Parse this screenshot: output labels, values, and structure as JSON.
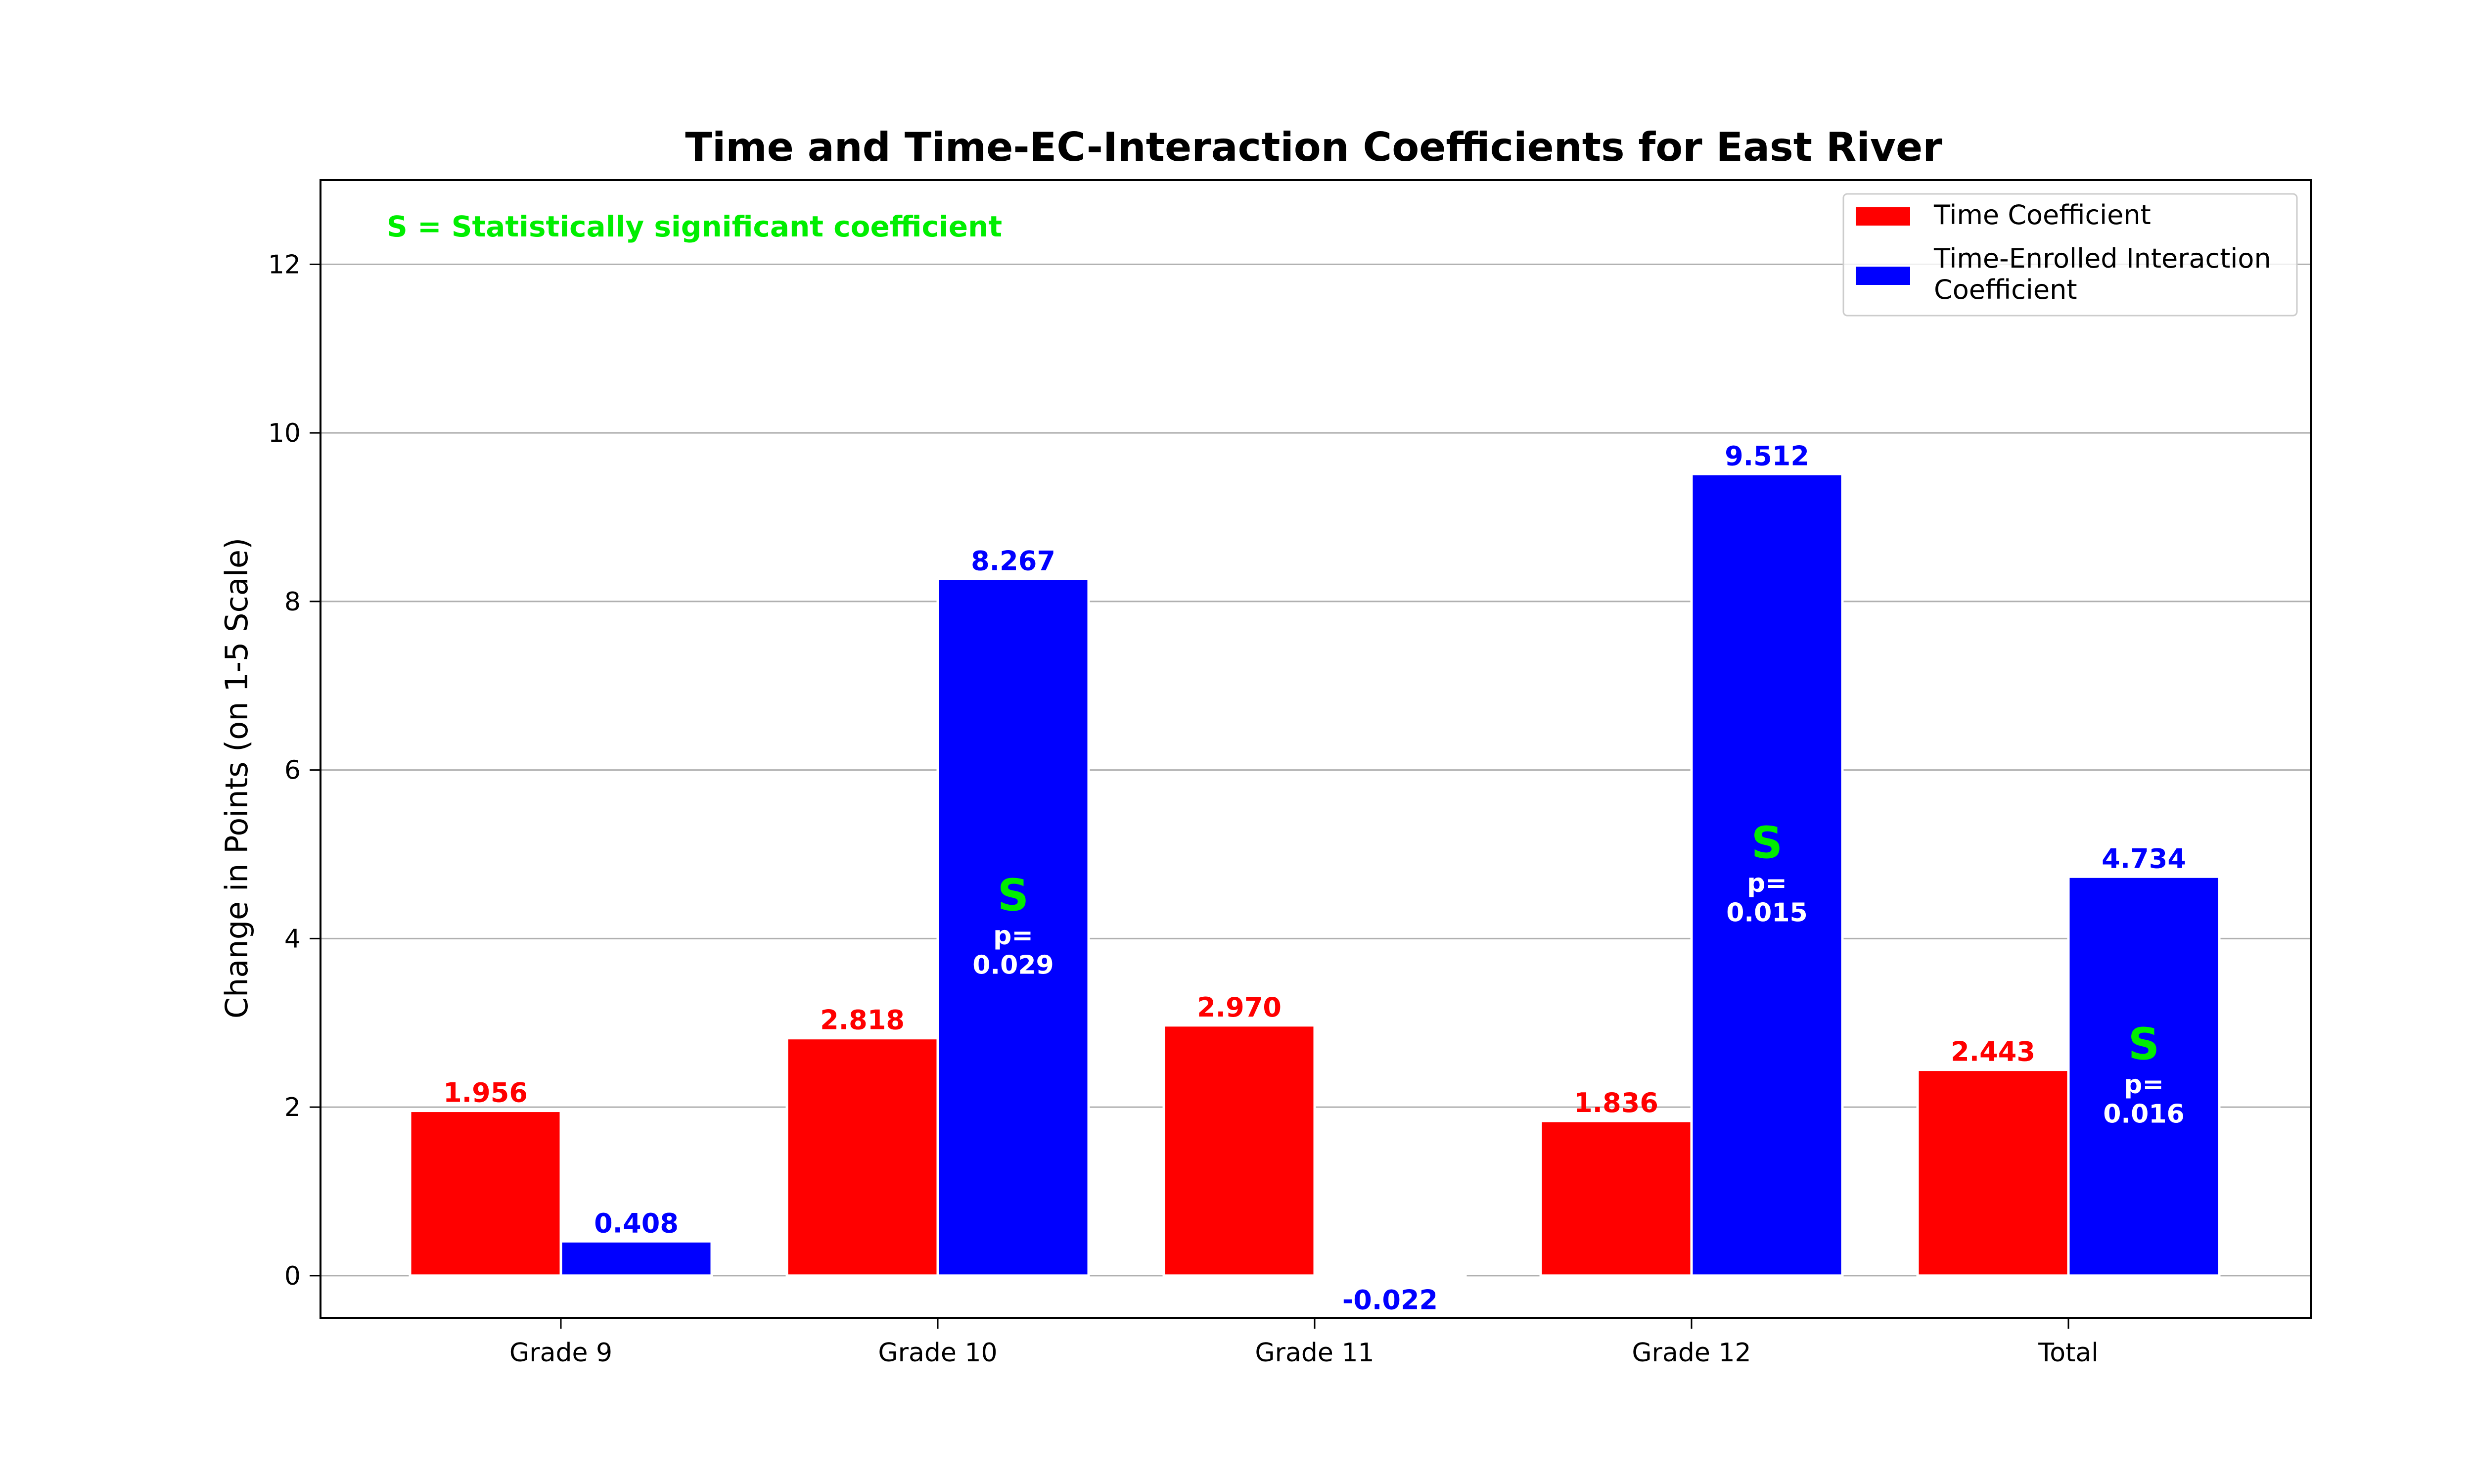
{
  "chart_data": {
    "type": "bar",
    "title": "Time and Time-EC-Interaction Coefficients for East River",
    "ylabel": "Change in Points (on 1-5 Scale)",
    "xlabel": "",
    "categories": [
      "Grade 9",
      "Grade 10",
      "Grade 11",
      "Grade 12",
      "Total"
    ],
    "series": [
      {
        "name": "Time Coefficient",
        "color": "#ff0000",
        "values": [
          1.956,
          2.818,
          2.97,
          1.836,
          2.443
        ],
        "labels": [
          "1.956",
          "2.818",
          "2.970",
          "1.836",
          "2.443"
        ]
      },
      {
        "name": "Time-Enrolled Interaction Coefficient",
        "legend_lines": [
          "Time-Enrolled Interaction",
          "Coefficient"
        ],
        "color": "#0000ff",
        "values": [
          0.408,
          8.267,
          -0.022,
          9.512,
          4.734
        ],
        "labels": [
          "0.408",
          "8.267",
          "-0.022",
          "9.512",
          "4.734"
        ]
      }
    ],
    "significance": [
      {
        "category_index": 1,
        "series_index": 1,
        "marker": "S",
        "p_label": "p=",
        "p_value": "0.029"
      },
      {
        "category_index": 3,
        "series_index": 1,
        "marker": "S",
        "p_label": "p=",
        "p_value": "0.015"
      },
      {
        "category_index": 4,
        "series_index": 1,
        "marker": "S",
        "p_label": "p=",
        "p_value": "0.016"
      }
    ],
    "annotation": "S = Statistically significant coefficient",
    "annotation_color": "#00ee00",
    "ylim": [
      -0.5,
      13
    ],
    "yticks": [
      0,
      2,
      4,
      6,
      8,
      10,
      12
    ],
    "grid": "horizontal",
    "legend_position": "top-right"
  }
}
